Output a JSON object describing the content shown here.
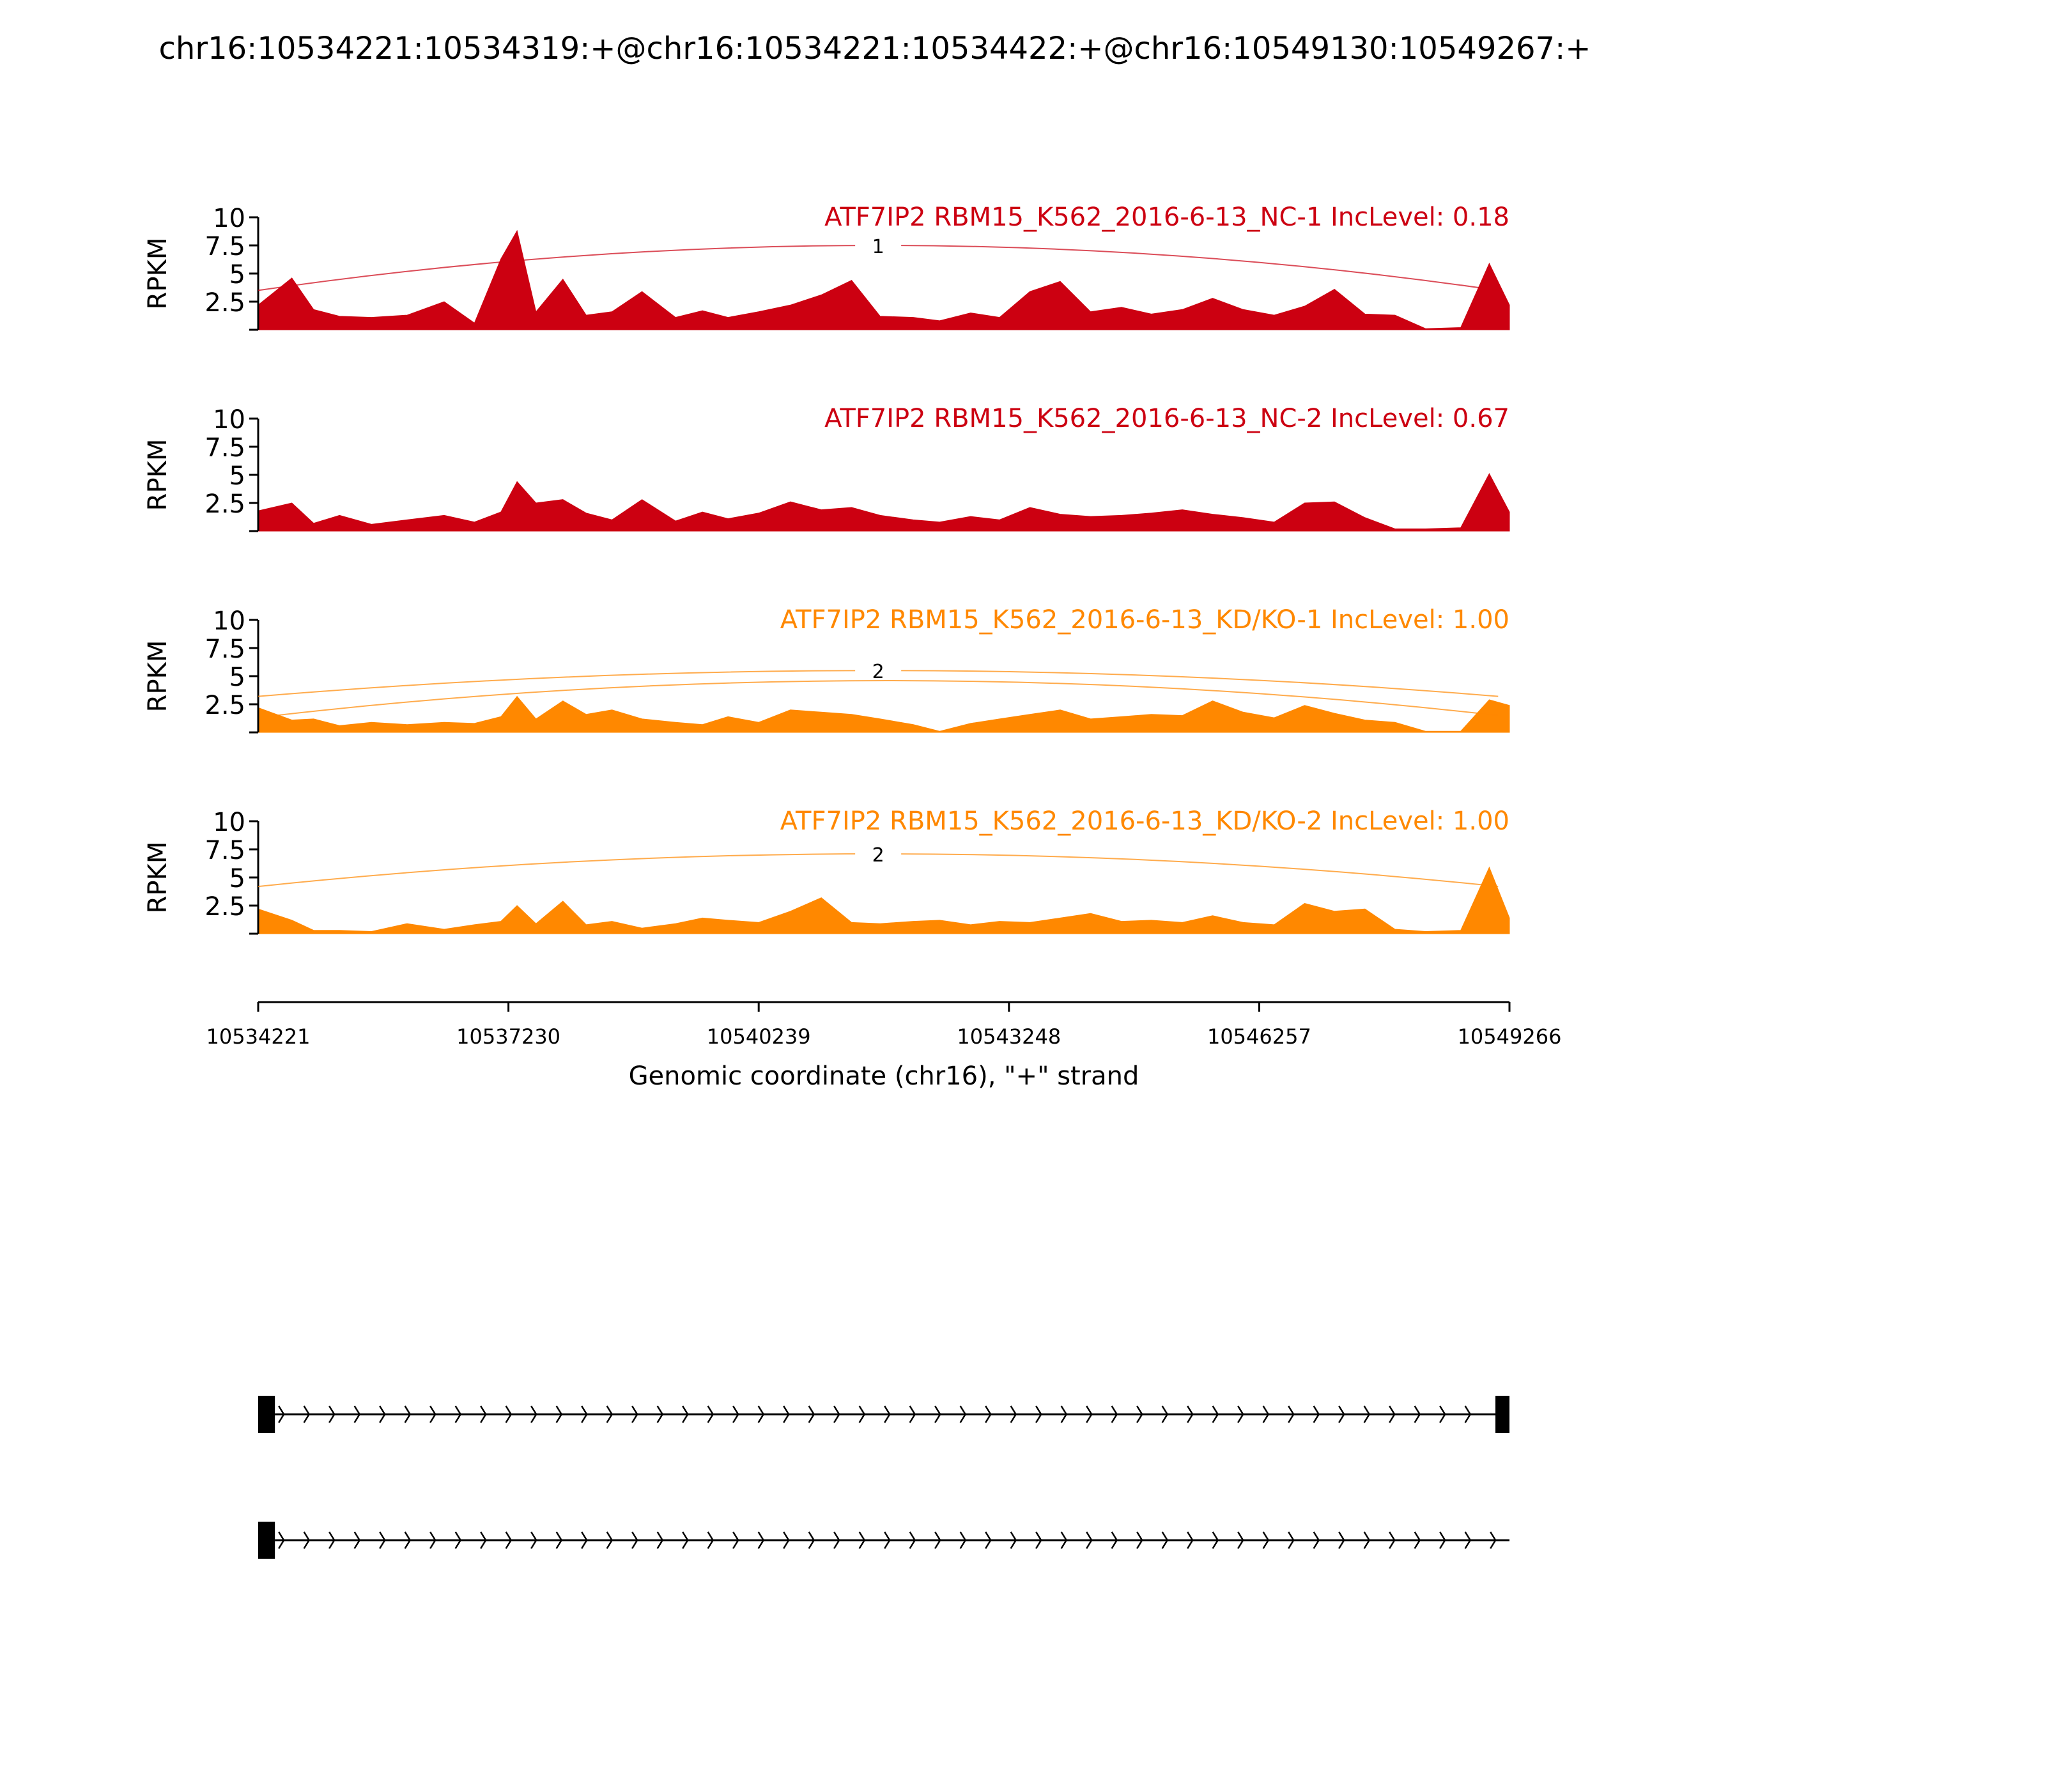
{
  "figure": {
    "title": "chr16:10534221:10534319:+@chr16:10534221:10534422:+@chr16:10549130:10549267:+"
  },
  "colors": {
    "nc": "#cc0011",
    "kd": "#ff8800",
    "axis": "#000000",
    "gene_model": "#000000"
  },
  "chart_data": {
    "type": "area",
    "title": "chr16:10534221:10534319:+@chr16:10534221:10534422:+@chr16:10549130:10549267:+",
    "xlabel": "Genomic coordinate (chr16), \"+\" strand",
    "ylabel": "RPKM",
    "xlim": [
      10534221,
      10549266
    ],
    "x_ticks": [
      "10534221",
      "10537230",
      "10540239",
      "10543248",
      "10546257",
      "10549266"
    ],
    "ylim": [
      0,
      10
    ],
    "y_ticks": [
      "2.5",
      "5",
      "7.5",
      "10"
    ],
    "x": [
      10534221,
      10534626,
      10534888,
      10535199,
      10535583,
      10536012,
      10536457,
      10536821,
      10537139,
      10537334,
      10537561,
      10537885,
      10538165,
      10538475,
      10538836,
      10539239,
      10539563,
      10539870,
      10540239,
      10540621,
      10540992,
      10541356,
      10541700,
      10542098,
      10542415,
      10542787,
      10543135,
      10543500,
      10543864,
      10544230,
      10544601,
      10544960,
      10545333,
      10545697,
      10546064,
      10546437,
      10546803,
      10547162,
      10547529,
      10547890,
      10548257,
      10548680,
      10549023,
      10549266
    ],
    "series": [
      {
        "name": "ATF7IP2 RBM15_K562_2016-6-13_NC-1 IncLevel: 0.18",
        "group": "nc",
        "values": [
          2.2,
          4.6,
          1.8,
          1.2,
          1.1,
          1.3,
          2.5,
          0.6,
          6.3,
          8.8,
          1.6,
          4.5,
          1.3,
          1.6,
          3.4,
          1.1,
          1.7,
          1.1,
          1.6,
          2.2,
          3.1,
          4.4,
          1.2,
          1.1,
          0.8,
          1.5,
          1.1,
          3.4,
          4.3,
          1.6,
          2.0,
          1.4,
          1.8,
          2.8,
          1.8,
          1.3,
          2.1,
          3.6,
          1.4,
          1.3,
          0.1,
          0.2,
          5.9,
          2.2
        ],
        "junctions": [
          {
            "label": "1",
            "from": 10534221,
            "to": 10549130
          }
        ]
      },
      {
        "name": "ATF7IP2 RBM15_K562_2016-6-13_NC-2 IncLevel: 0.67",
        "group": "nc",
        "values": [
          1.8,
          2.5,
          0.7,
          1.4,
          0.6,
          1.0,
          1.4,
          0.8,
          1.7,
          4.4,
          2.5,
          2.8,
          1.6,
          1.0,
          2.8,
          0.9,
          1.7,
          1.1,
          1.6,
          2.6,
          1.9,
          2.1,
          1.4,
          1.0,
          0.8,
          1.3,
          1.0,
          2.1,
          1.5,
          1.3,
          1.4,
          1.6,
          1.9,
          1.5,
          1.2,
          0.8,
          2.5,
          2.6,
          1.2,
          0.2,
          0.2,
          0.3,
          5.1,
          1.7
        ],
        "junctions": []
      },
      {
        "name": "ATF7IP2 RBM15_K562_2016-6-13_KD/KO-1 IncLevel: 1.00",
        "group": "kd",
        "values": [
          2.2,
          1.1,
          1.2,
          0.6,
          0.9,
          0.7,
          0.9,
          0.8,
          1.4,
          3.2,
          1.2,
          2.8,
          1.6,
          2.0,
          1.2,
          0.9,
          0.7,
          1.4,
          0.9,
          2.0,
          1.8,
          1.6,
          1.2,
          0.7,
          0.1,
          0.8,
          1.2,
          1.6,
          2.0,
          1.2,
          1.4,
          1.6,
          1.5,
          2.8,
          1.8,
          1.3,
          2.4,
          1.7,
          1.1,
          0.9,
          0.1,
          0.1,
          2.9,
          2.4
        ],
        "junctions": [
          {
            "label": "2",
            "from": 10534221,
            "to": 10549130
          },
          {
            "label": "",
            "from": 10534422,
            "to": 10549130
          }
        ]
      },
      {
        "name": "ATF7IP2 RBM15_K562_2016-6-13_KD/KO-2 IncLevel: 1.00",
        "group": "kd",
        "values": [
          2.2,
          1.2,
          0.3,
          0.3,
          0.2,
          0.9,
          0.4,
          0.8,
          1.1,
          2.5,
          0.9,
          2.9,
          0.8,
          1.1,
          0.5,
          0.9,
          1.4,
          1.2,
          1.0,
          2.0,
          3.2,
          1.0,
          0.9,
          1.1,
          1.2,
          0.8,
          1.1,
          1.0,
          1.4,
          1.8,
          1.1,
          1.2,
          1.0,
          1.6,
          1.0,
          0.8,
          2.7,
          2.0,
          2.2,
          0.4,
          0.2,
          0.3,
          5.9,
          1.4
        ],
        "junctions": [
          {
            "label": "2",
            "from": 10534221,
            "to": 10549130
          }
        ]
      }
    ]
  },
  "gene_models": [
    {
      "exons": [
        [
          10534221,
          10534422
        ],
        [
          10549130,
          10549267
        ]
      ]
    },
    {
      "exons": [
        [
          10534221,
          10534422
        ]
      ]
    }
  ]
}
